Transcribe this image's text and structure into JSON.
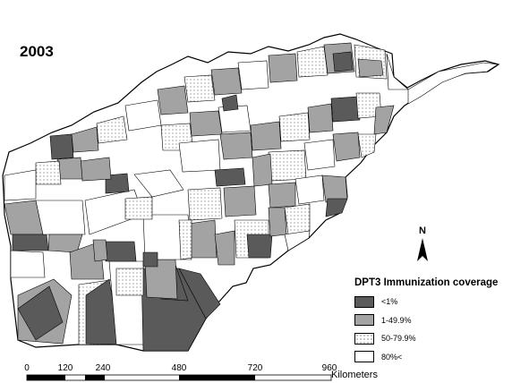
{
  "year": "2003",
  "legend": {
    "title": "DPT3 Immunization coverage",
    "items": [
      {
        "label": "<1%",
        "fill": "#5a5a5a",
        "pattern": false
      },
      {
        "label": "1-49.9%",
        "fill": "#a3a3a3",
        "pattern": false
      },
      {
        "label": "50-79.9%",
        "fill": "#ffffff",
        "pattern": true
      },
      {
        "label": "80%<",
        "fill": "#ffffff",
        "pattern": false
      }
    ]
  },
  "north_arrow": {
    "letter": "N"
  },
  "scale": {
    "ticks": [
      "0",
      "120",
      "240",
      "480",
      "720",
      "960"
    ],
    "unit": "Kilometers"
  }
}
